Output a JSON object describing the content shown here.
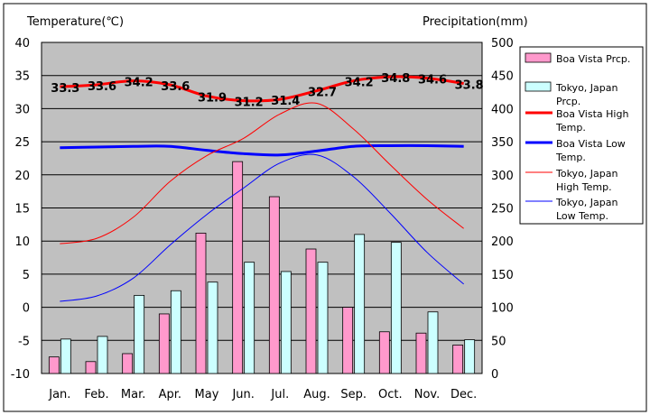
{
  "chart_data": {
    "type": "combo",
    "left_axis_label": "Temperature(℃)",
    "right_axis_label": "Precipitation(mm)",
    "categories": [
      "Jan.",
      "Feb.",
      "Mar.",
      "Apr.",
      "May",
      "Jun.",
      "Jul.",
      "Aug.",
      "Sep.",
      "Oct.",
      "Nov.",
      "Dec."
    ],
    "temp_ylim": [
      -10,
      40
    ],
    "temp_ticks": [
      "40",
      "35",
      "30",
      "25",
      "20",
      "15",
      "10",
      "5",
      "0",
      "-5",
      "-10"
    ],
    "prcp_ylim": [
      0,
      500
    ],
    "prcp_ticks": [
      "500",
      "450",
      "400",
      "350",
      "300",
      "250",
      "200",
      "150",
      "100",
      "50",
      "0"
    ],
    "bar_series": [
      {
        "name": "Boa Vista Prcp.",
        "color": "#ff99cc",
        "values": [
          25,
          18,
          30,
          90,
          212,
          320,
          267,
          188,
          100,
          63,
          61,
          43
        ]
      },
      {
        "name": "Tokyo, Japan Prcp.",
        "color": "#ccffff",
        "values": [
          52,
          56,
          118,
          125,
          138,
          168,
          154,
          168,
          210,
          198,
          93,
          51
        ]
      }
    ],
    "line_series": [
      {
        "name": "Boa Vista High Temp.",
        "color": "#ff0000",
        "width": 3,
        "values": [
          33.3,
          33.6,
          34.2,
          33.6,
          31.9,
          31.2,
          31.4,
          32.7,
          34.2,
          34.8,
          34.6,
          33.8
        ],
        "labels": [
          "33.3",
          "33.6",
          "34.2",
          "33.6",
          "31.9",
          "31.2",
          "31.4",
          "32.7",
          "34.2",
          "34.8",
          "34.6",
          "33.8"
        ]
      },
      {
        "name": "Boa Vista Low Temp.",
        "color": "#0000ff",
        "width": 3,
        "values": [
          24.1,
          24.2,
          24.3,
          24.3,
          23.7,
          23.2,
          23.0,
          23.6,
          24.3,
          24.4,
          24.4,
          24.3
        ]
      },
      {
        "name": "Tokyo, Japan High Temp.",
        "color": "#ff0000",
        "width": 1,
        "values": [
          9.6,
          10.4,
          13.6,
          19.0,
          22.9,
          25.5,
          29.2,
          30.8,
          26.9,
          21.5,
          16.3,
          11.9
        ]
      },
      {
        "name": "Tokyo, Japan Low Temp.",
        "color": "#0000ff",
        "width": 1,
        "values": [
          0.9,
          1.7,
          4.4,
          9.4,
          14.0,
          18.0,
          21.8,
          23.0,
          19.7,
          14.2,
          8.3,
          3.5
        ]
      }
    ],
    "legend": [
      {
        "key": "bar",
        "color": "#ff99cc",
        "lines": [
          "Boa Vista Prcp."
        ]
      },
      {
        "key": "bar",
        "color": "#ccffff",
        "lines": [
          "Tokyo, Japan",
          "Prcp."
        ]
      },
      {
        "key": "line",
        "color": "#ff0000",
        "width": 3,
        "lines": [
          "Boa Vista High",
          "Temp."
        ]
      },
      {
        "key": "line",
        "color": "#0000ff",
        "width": 3,
        "lines": [
          "Boa Vista Low",
          "Temp."
        ]
      },
      {
        "key": "line",
        "color": "#ff0000",
        "width": 1,
        "lines": [
          "Tokyo, Japan",
          "High Temp."
        ]
      },
      {
        "key": "line",
        "color": "#0000ff",
        "width": 1,
        "lines": [
          "Tokyo, Japan",
          "Low Temp."
        ]
      }
    ],
    "legend_position": "right",
    "grid": true,
    "plot_background": "#c0c0c0"
  }
}
